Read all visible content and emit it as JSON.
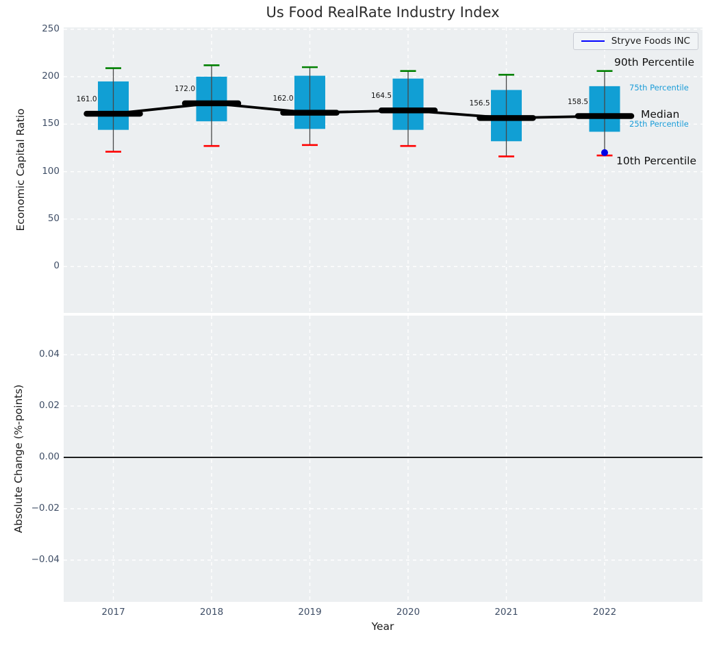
{
  "chart_data": {
    "type": "boxplot",
    "title": "Us Food RealRate Industry Index",
    "xlabel": "Year",
    "categories": [
      2017,
      2018,
      2019,
      2020,
      2021,
      2022
    ],
    "panels": [
      {
        "ylabel": "Economic Capital Ratio",
        "yticks": [
          0,
          50,
          100,
          150,
          200,
          250
        ],
        "ylim": [
          -49,
          251
        ],
        "grid": true,
        "legend_position": "upper right",
        "boxes": [
          {
            "year": 2017,
            "p10": 121,
            "p25": 144,
            "median": 161.0,
            "p75": 195,
            "p90": 209,
            "median_label": "161.0"
          },
          {
            "year": 2018,
            "p10": 127,
            "p25": 153,
            "median": 172.0,
            "p75": 200,
            "p90": 212,
            "median_label": "172.0"
          },
          {
            "year": 2019,
            "p10": 128,
            "p25": 145,
            "median": 162.0,
            "p75": 201,
            "p90": 210,
            "median_label": "162.0"
          },
          {
            "year": 2020,
            "p10": 127,
            "p25": 144,
            "median": 164.5,
            "p75": 198,
            "p90": 206,
            "median_label": "164.5"
          },
          {
            "year": 2021,
            "p10": 116,
            "p25": 132,
            "median": 156.5,
            "p75": 186,
            "p90": 202,
            "median_label": "156.5"
          },
          {
            "year": 2022,
            "p10": 117,
            "p25": 142,
            "median": 158.5,
            "p75": 190,
            "p90": 206,
            "median_label": "158.5"
          }
        ],
        "series": [
          {
            "name": "Stryve Foods INC",
            "points": [
              {
                "year": 2022,
                "value": 120
              }
            ]
          }
        ],
        "annotations": {
          "p90": "90th Percentile",
          "p75": "75th Percentile",
          "median": "Median",
          "p25": "25th Percentile",
          "p10": "10th Percentile"
        }
      },
      {
        "ylabel": "Absolute Change (%-points)",
        "yticks": [
          0.04,
          0.02,
          0.0,
          -0.02,
          -0.04
        ],
        "ytick_labels": [
          "0.04",
          "0.02",
          "0.00",
          "−0.02",
          "−0.04"
        ],
        "ylim": [
          -0.056,
          0.055
        ],
        "zero_line": 0.0,
        "grid": true
      }
    ],
    "colors": {
      "box_fill": "#119fd4",
      "p90_cap": "#008000",
      "p10_cap": "#ff0000",
      "whisker": "#474747",
      "median_line": "#000000",
      "series_line": "#0000ff",
      "series_point": "#0000e6",
      "annotation_accent": "#1a9cd8",
      "axes_background": "#eceff1",
      "grid_line": "#ffffff",
      "tick_label": "#3f4e66"
    }
  }
}
